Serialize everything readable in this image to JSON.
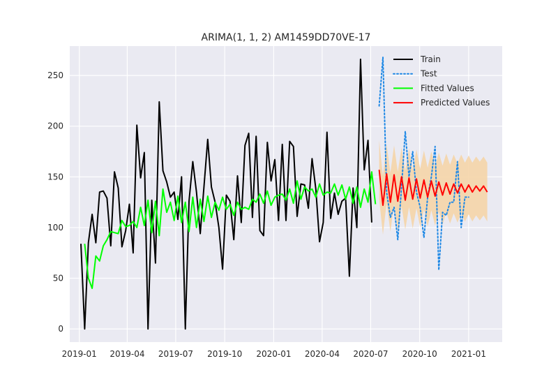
{
  "chart_data": {
    "type": "line",
    "title": "ARIMA(1, 1, 2) AM1459DD70VE-17",
    "xlabel": "",
    "ylabel": "",
    "xlim": [
      "2018-12-14",
      "2021-03-05"
    ],
    "ylim": [
      -13,
      279
    ],
    "grid": true,
    "legend_position": "top-right",
    "x_ticks": [
      {
        "date": "2019-01-01",
        "label": "2019-01"
      },
      {
        "date": "2019-04-01",
        "label": "2019-04"
      },
      {
        "date": "2019-07-01",
        "label": "2019-07"
      },
      {
        "date": "2019-10-01",
        "label": "2019-10"
      },
      {
        "date": "2020-01-01",
        "label": "2020-01"
      },
      {
        "date": "2020-04-01",
        "label": "2020-04"
      },
      {
        "date": "2020-07-01",
        "label": "2020-07"
      },
      {
        "date": "2020-10-01",
        "label": "2020-10"
      },
      {
        "date": "2021-01-01",
        "label": "2021-01"
      }
    ],
    "y_ticks": [
      0,
      50,
      100,
      150,
      200,
      250
    ],
    "series": [
      {
        "name": "Train",
        "color": "#000000",
        "style": "solid",
        "x": [
          "2019-01-04",
          "2019-01-11",
          "2019-01-18",
          "2019-01-25",
          "2019-02-01",
          "2019-02-08",
          "2019-02-15",
          "2019-02-22",
          "2019-03-01",
          "2019-03-08",
          "2019-03-15",
          "2019-03-22",
          "2019-03-29",
          "2019-04-05",
          "2019-04-12",
          "2019-04-19",
          "2019-04-26",
          "2019-05-03",
          "2019-05-10",
          "2019-05-17",
          "2019-05-24",
          "2019-05-31",
          "2019-06-07",
          "2019-06-14",
          "2019-06-21",
          "2019-06-28",
          "2019-07-05",
          "2019-07-12",
          "2019-07-19",
          "2019-07-26",
          "2019-08-02",
          "2019-08-09",
          "2019-08-16",
          "2019-08-23",
          "2019-08-30",
          "2019-09-06",
          "2019-09-13",
          "2019-09-20",
          "2019-09-27",
          "2019-10-04",
          "2019-10-11",
          "2019-10-18",
          "2019-10-25",
          "2019-11-01",
          "2019-11-08",
          "2019-11-15",
          "2019-11-22",
          "2019-11-29",
          "2019-12-06",
          "2019-12-13",
          "2019-12-20",
          "2019-12-27",
          "2020-01-03",
          "2020-01-10",
          "2020-01-17",
          "2020-01-24",
          "2020-01-31",
          "2020-02-07",
          "2020-02-14",
          "2020-02-21",
          "2020-02-28",
          "2020-03-06",
          "2020-03-13",
          "2020-03-20",
          "2020-03-27",
          "2020-04-03",
          "2020-04-10",
          "2020-04-17",
          "2020-04-24",
          "2020-05-01",
          "2020-05-08",
          "2020-05-15",
          "2020-05-22",
          "2020-05-29",
          "2020-06-05",
          "2020-06-12",
          "2020-06-19",
          "2020-06-26",
          "2020-07-03",
          "2020-07-10"
        ],
        "values": [
          84,
          0,
          85,
          113,
          85,
          135,
          136,
          129,
          82,
          155,
          139,
          81,
          97,
          123,
          75,
          201,
          149,
          174,
          0,
          127,
          65,
          224,
          156,
          145,
          130,
          135,
          108,
          150,
          0,
          126,
          165,
          135,
          94,
          140,
          187,
          140,
          125,
          100,
          59,
          132,
          126,
          88,
          151,
          105,
          181,
          193,
          110,
          190,
          97,
          92,
          184,
          146,
          167,
          107,
          182,
          107,
          185,
          180,
          111,
          143,
          142,
          119,
          168,
          138,
          86,
          105,
          194,
          109,
          134,
          113,
          126,
          129,
          52,
          139,
          100,
          266,
          157,
          186,
          105,
          null
        ]
      },
      {
        "name": "Test",
        "color": "#1e88e5",
        "style": "dotted",
        "x": [
          "2020-07-17",
          "2020-07-24",
          "2020-07-31",
          "2020-08-07",
          "2020-08-14",
          "2020-08-21",
          "2020-08-28",
          "2020-09-04",
          "2020-09-11",
          "2020-09-18",
          "2020-09-25",
          "2020-10-02",
          "2020-10-09",
          "2020-10-16",
          "2020-10-23",
          "2020-10-30",
          "2020-11-06",
          "2020-11-13",
          "2020-11-20",
          "2020-11-27",
          "2020-12-04",
          "2020-12-11",
          "2020-12-18",
          "2020-12-25",
          "2021-01-01"
        ],
        "values": [
          220,
          268,
          135,
          110,
          120,
          88,
          140,
          195,
          150,
          175,
          135,
          120,
          90,
          130,
          150,
          180,
          58,
          115,
          112,
          125,
          125,
          165,
          100,
          130,
          130
        ]
      },
      {
        "name": "Fitted Values",
        "color": "#00ff00",
        "style": "solid",
        "x": [
          "2019-01-11",
          "2019-01-18",
          "2019-01-25",
          "2019-02-01",
          "2019-02-08",
          "2019-02-15",
          "2019-02-22",
          "2019-03-01",
          "2019-03-08",
          "2019-03-15",
          "2019-03-22",
          "2019-03-29",
          "2019-04-05",
          "2019-04-12",
          "2019-04-19",
          "2019-04-26",
          "2019-05-03",
          "2019-05-10",
          "2019-05-17",
          "2019-05-24",
          "2019-05-31",
          "2019-06-07",
          "2019-06-14",
          "2019-06-21",
          "2019-06-28",
          "2019-07-05",
          "2019-07-12",
          "2019-07-19",
          "2019-07-26",
          "2019-08-02",
          "2019-08-09",
          "2019-08-16",
          "2019-08-23",
          "2019-08-30",
          "2019-09-06",
          "2019-09-13",
          "2019-09-20",
          "2019-09-27",
          "2019-10-04",
          "2019-10-11",
          "2019-10-18",
          "2019-10-25",
          "2019-11-01",
          "2019-11-08",
          "2019-11-15",
          "2019-11-22",
          "2019-11-29",
          "2019-12-06",
          "2019-12-13",
          "2019-12-20",
          "2019-12-27",
          "2020-01-03",
          "2020-01-10",
          "2020-01-17",
          "2020-01-24",
          "2020-01-31",
          "2020-02-07",
          "2020-02-14",
          "2020-02-21",
          "2020-02-28",
          "2020-03-06",
          "2020-03-13",
          "2020-03-20",
          "2020-03-27",
          "2020-04-03",
          "2020-04-10",
          "2020-04-17",
          "2020-04-24",
          "2020-05-01",
          "2020-05-08",
          "2020-05-15",
          "2020-05-22",
          "2020-05-29",
          "2020-06-05",
          "2020-06-12",
          "2020-06-19",
          "2020-06-26",
          "2020-07-03",
          "2020-07-10"
        ],
        "values": [
          84,
          50,
          40,
          72,
          67,
          82,
          88,
          96,
          95,
          94,
          107,
          101,
          102,
          106,
          100,
          120,
          102,
          127,
          95,
          126,
          92,
          138,
          115,
          125,
          107,
          131,
          105,
          125,
          96,
          130,
          100,
          128,
          106,
          131,
          110,
          125,
          117,
          130,
          118,
          123,
          112,
          125,
          118,
          120,
          118,
          128,
          125,
          133,
          124,
          136,
          122,
          130,
          132,
          133,
          127,
          138,
          124,
          146,
          128,
          140,
          136,
          138,
          130,
          143,
          132,
          135,
          134,
          143,
          132,
          142,
          128,
          140,
          124,
          140,
          120,
          138,
          125,
          155,
          123
        ]
      },
      {
        "name": "Predicted Values",
        "color": "#ff0000",
        "style": "solid",
        "x": [
          "2020-07-17",
          "2020-07-24",
          "2020-07-31",
          "2020-08-07",
          "2020-08-14",
          "2020-08-21",
          "2020-08-28",
          "2020-09-04",
          "2020-09-11",
          "2020-09-18",
          "2020-09-25",
          "2020-10-02",
          "2020-10-09",
          "2020-10-16",
          "2020-10-23",
          "2020-10-30",
          "2020-11-06",
          "2020-11-13",
          "2020-11-20",
          "2020-11-27",
          "2020-12-04",
          "2020-12-11",
          "2020-12-18",
          "2020-12-25",
          "2021-01-01",
          "2021-01-08",
          "2021-01-15",
          "2021-01-22",
          "2021-01-29",
          "2021-02-05"
        ],
        "values": [
          157,
          122,
          153,
          125,
          152,
          126,
          150,
          127,
          149,
          128,
          148,
          129,
          147,
          130,
          146,
          131,
          145,
          132,
          144,
          133,
          143,
          134,
          143,
          135,
          142,
          135,
          141,
          136,
          141,
          135
        ],
        "ci_lower": [
          128,
          93,
          124,
          96,
          123,
          97,
          121,
          98,
          120,
          99,
          119,
          100,
          118,
          101,
          117,
          102,
          116,
          103,
          115,
          104,
          114,
          105,
          114,
          106,
          113,
          106,
          112,
          107,
          112,
          106
        ],
        "ci_upper": [
          186,
          151,
          182,
          154,
          181,
          155,
          179,
          156,
          178,
          157,
          177,
          158,
          176,
          159,
          175,
          160,
          174,
          161,
          173,
          162,
          172,
          163,
          172,
          164,
          171,
          164,
          170,
          165,
          170,
          164
        ],
        "ci_color": "#f5d5a8"
      }
    ]
  }
}
